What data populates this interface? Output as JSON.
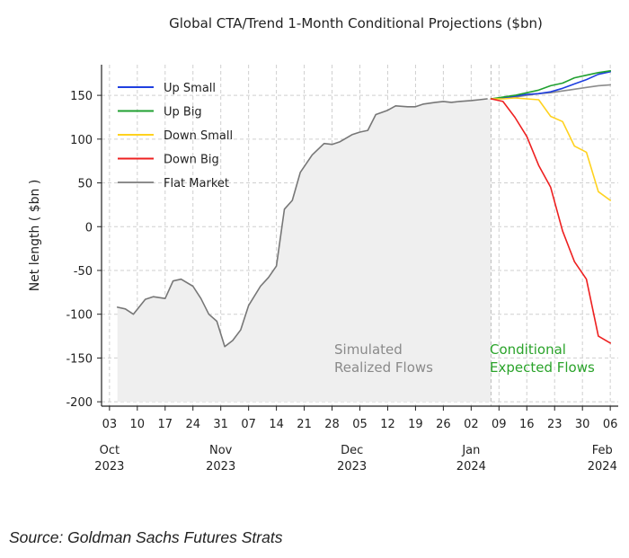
{
  "chart_data": {
    "type": "line",
    "title": "Global CTA/Trend 1-Month Conditional Projections ($bn)",
    "ylabel": "Net length ( $bn )",
    "xlabel": "",
    "ylim": [
      -205,
      185
    ],
    "yticks": [
      150,
      100,
      50,
      0,
      -50,
      -100,
      -150,
      -200
    ],
    "grid": true,
    "xlim": [
      "2023-10-01",
      "2024-02-08"
    ],
    "xticks": [
      {
        "date": "2023-10-03",
        "label": "03"
      },
      {
        "date": "2023-10-10",
        "label": "10"
      },
      {
        "date": "2023-10-17",
        "label": "17"
      },
      {
        "date": "2023-10-24",
        "label": "24"
      },
      {
        "date": "2023-10-31",
        "label": "31"
      },
      {
        "date": "2023-11-07",
        "label": "07"
      },
      {
        "date": "2023-11-14",
        "label": "14"
      },
      {
        "date": "2023-11-21",
        "label": "21"
      },
      {
        "date": "2023-11-28",
        "label": "28"
      },
      {
        "date": "2023-12-05",
        "label": "05"
      },
      {
        "date": "2023-12-12",
        "label": "12"
      },
      {
        "date": "2023-12-19",
        "label": "19"
      },
      {
        "date": "2023-12-26",
        "label": "26"
      },
      {
        "date": "2024-01-02",
        "label": "02"
      },
      {
        "date": "2024-01-09",
        "label": "09"
      },
      {
        "date": "2024-01-16",
        "label": "16"
      },
      {
        "date": "2024-01-23",
        "label": "23"
      },
      {
        "date": "2024-01-30",
        "label": "30"
      },
      {
        "date": "2024-02-06",
        "label": "06"
      }
    ],
    "month_labels": [
      {
        "date": "2023-10-03",
        "month": "Oct",
        "year": "2023"
      },
      {
        "date": "2023-10-31",
        "month": "Nov",
        "year": "2023"
      },
      {
        "date": "2023-12-03",
        "month": "Dec",
        "year": "2023"
      },
      {
        "date": "2024-01-02",
        "month": "Jan",
        "year": "2024"
      },
      {
        "date": "2024-02-04",
        "month": "Feb",
        "year": "2024"
      }
    ],
    "realized": {
      "color": "#777777",
      "fill": "#efefef",
      "x": [
        "2023-10-05",
        "2023-10-07",
        "2023-10-09",
        "2023-10-12",
        "2023-10-14",
        "2023-10-17",
        "2023-10-19",
        "2023-10-21",
        "2023-10-24",
        "2023-10-26",
        "2023-10-28",
        "2023-10-30",
        "2023-11-01",
        "2023-11-03",
        "2023-11-05",
        "2023-11-07",
        "2023-11-10",
        "2023-11-12",
        "2023-11-14",
        "2023-11-16",
        "2023-11-18",
        "2023-11-20",
        "2023-11-23",
        "2023-11-26",
        "2023-11-28",
        "2023-11-30",
        "2023-12-03",
        "2023-12-05",
        "2023-12-07",
        "2023-12-09",
        "2023-12-12",
        "2023-12-14",
        "2023-12-17",
        "2023-12-19",
        "2023-12-21",
        "2023-12-24",
        "2023-12-26",
        "2023-12-28",
        "2023-12-30",
        "2024-01-02",
        "2024-01-04",
        "2024-01-06"
      ],
      "values": [
        -92,
        -94,
        -100,
        -83,
        -80,
        -82,
        -62,
        -60,
        -68,
        -82,
        -100,
        -108,
        -137,
        -130,
        -118,
        -90,
        -68,
        -58,
        -45,
        20,
        30,
        62,
        82,
        95,
        94,
        97,
        105,
        108,
        110,
        128,
        133,
        138,
        137,
        137,
        140,
        142,
        143,
        142,
        143,
        144,
        145,
        146
      ]
    },
    "shaded_region": {
      "start": "2023-10-05",
      "end": "2024-01-07",
      "bottom": -200
    },
    "divider": "2024-01-07",
    "series": [
      {
        "name": "Up Small",
        "color": "#1f3fe0",
        "x": [
          "2024-01-07",
          "2024-01-10",
          "2024-01-13",
          "2024-01-16",
          "2024-01-19",
          "2024-01-22",
          "2024-01-25",
          "2024-01-28",
          "2024-01-31",
          "2024-02-03",
          "2024-02-06"
        ],
        "values": [
          146,
          147,
          149,
          151,
          152,
          154,
          158,
          163,
          168,
          174,
          177
        ]
      },
      {
        "name": "Up Big",
        "color": "#20a030",
        "x": [
          "2024-01-07",
          "2024-01-10",
          "2024-01-13",
          "2024-01-16",
          "2024-01-19",
          "2024-01-22",
          "2024-01-25",
          "2024-01-28",
          "2024-01-31",
          "2024-02-03",
          "2024-02-06"
        ],
        "values": [
          146,
          148,
          150,
          153,
          156,
          161,
          164,
          170,
          173,
          176,
          178
        ]
      },
      {
        "name": "Down Small",
        "color": "#ffd21f",
        "x": [
          "2024-01-07",
          "2024-01-10",
          "2024-01-13",
          "2024-01-16",
          "2024-01-19",
          "2024-01-22",
          "2024-01-25",
          "2024-01-28",
          "2024-01-31",
          "2024-02-03",
          "2024-02-06"
        ],
        "values": [
          146,
          146,
          147,
          146,
          145,
          126,
          120,
          92,
          85,
          40,
          30
        ]
      },
      {
        "name": "Down Big",
        "color": "#ee2020",
        "x": [
          "2024-01-07",
          "2024-01-10",
          "2024-01-13",
          "2024-01-16",
          "2024-01-19",
          "2024-01-22",
          "2024-01-25",
          "2024-01-28",
          "2024-01-31",
          "2024-02-03",
          "2024-02-06"
        ],
        "values": [
          146,
          143,
          125,
          103,
          70,
          45,
          -5,
          -40,
          -60,
          -125,
          -133
        ]
      },
      {
        "name": "Flat Market",
        "color": "#8c8c8c",
        "x": [
          "2024-01-07",
          "2024-01-10",
          "2024-01-13",
          "2024-01-16",
          "2024-01-19",
          "2024-01-22",
          "2024-01-25",
          "2024-01-28",
          "2024-01-31",
          "2024-02-03",
          "2024-02-06"
        ],
        "values": [
          146,
          147,
          148,
          150,
          152,
          153,
          155,
          157,
          159,
          161,
          162
        ]
      }
    ],
    "annotations": [
      {
        "lines": [
          "Simulated",
          "Realized Flows"
        ],
        "color": "#8a8a8a"
      },
      {
        "lines": [
          "Conditional",
          "Expected Flows"
        ],
        "color": "#2aa32a"
      }
    ],
    "legend_position": "top-left"
  },
  "source": "Source: Goldman Sachs Futures Strats"
}
